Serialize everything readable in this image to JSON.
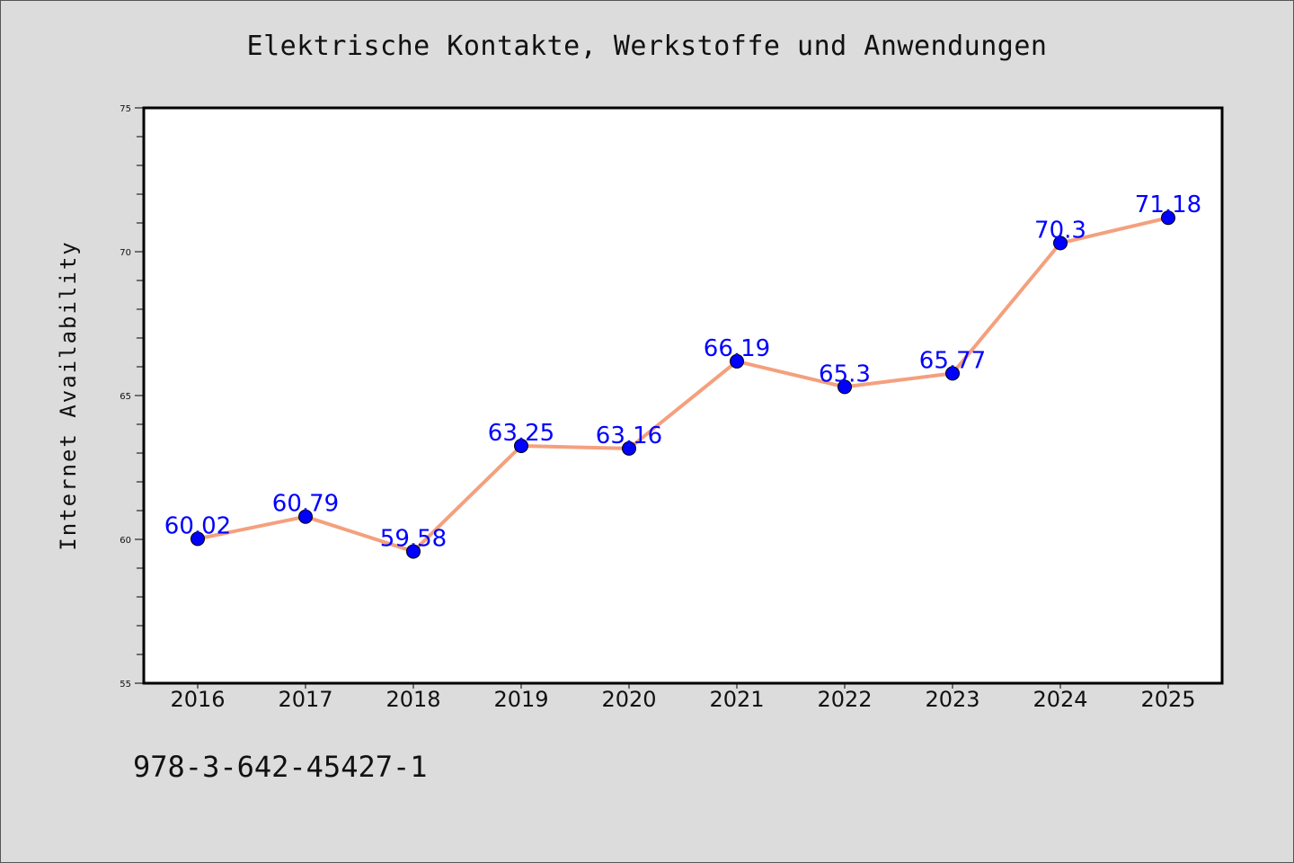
{
  "title": "Elektrische Kontakte, Werkstoffe und Anwendungen",
  "footer_code": "978-3-642-45427-1",
  "colors": {
    "background": "#dcdcdc",
    "plot_background": "#ffffff",
    "line": "#f4a07e",
    "marker": "#0000ff",
    "data_label": "#0000ff"
  },
  "chart_data": {
    "type": "line",
    "title": "Elektrische Kontakte, Werkstoffe und Anwendungen",
    "xlabel": "",
    "ylabel": "Internet Availability",
    "categories": [
      "2016",
      "2017",
      "2018",
      "2019",
      "2020",
      "2021",
      "2022",
      "2023",
      "2024",
      "2025"
    ],
    "series": [
      {
        "values": [
          60.02,
          60.79,
          59.58,
          63.25,
          63.16,
          66.19,
          65.3,
          65.77,
          70.3,
          71.18
        ],
        "labels": [
          "60.02",
          "60.79",
          "59.58",
          "63.25",
          "63.16",
          "66.19",
          "65.3",
          "65.77",
          "70.3",
          "71.18"
        ]
      }
    ],
    "ylim": [
      55,
      75
    ],
    "yticks": [
      55,
      60,
      65,
      70,
      75
    ],
    "yminor_step": 1,
    "grid": false,
    "legend": "none"
  }
}
